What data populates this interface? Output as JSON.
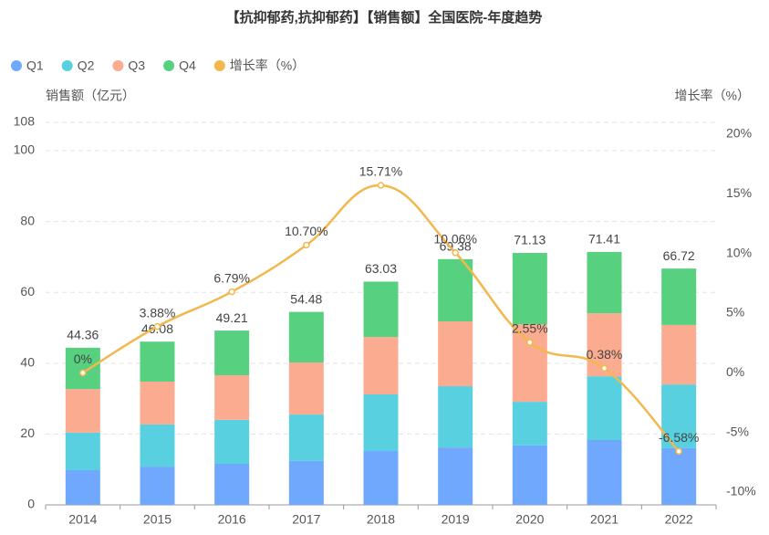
{
  "chart_data": {
    "type": "bar-line",
    "title": "【抗抑郁药,抗抑郁药】【销售额】全国医院-年度趋势",
    "y_label": "销售额（亿元）",
    "y2_label": "增长率（%）",
    "categories": [
      "2014",
      "2015",
      "2016",
      "2017",
      "2018",
      "2019",
      "2020",
      "2021",
      "2022"
    ],
    "series": [
      {
        "name": "Q1",
        "color": "#6fa8fc",
        "values": [
          9.8,
          10.8,
          11.6,
          12.4,
          15.2,
          16.2,
          16.8,
          18.3,
          16.0
        ]
      },
      {
        "name": "Q2",
        "color": "#58d0e0",
        "values": [
          10.6,
          11.9,
          12.4,
          13.1,
          16.0,
          17.3,
          12.3,
          18.0,
          18.0
        ]
      },
      {
        "name": "Q3",
        "color": "#fbab8f",
        "values": [
          12.3,
          12.1,
          12.6,
          14.7,
          16.2,
          18.3,
          21.9,
          17.8,
          16.8
        ]
      },
      {
        "name": "Q4",
        "color": "#57d07f",
        "values": [
          11.66,
          11.28,
          12.61,
          14.28,
          15.63,
          17.58,
          20.13,
          17.31,
          15.92
        ]
      },
      {
        "name": "增长率（%）",
        "color": "#f2b84e",
        "axis": "y2",
        "values": [
          0,
          3.88,
          6.79,
          10.7,
          15.71,
          10.06,
          2.55,
          0.38,
          -6.58
        ],
        "value_labels": [
          "0%",
          "3.88%",
          "6.79%",
          "10.70%",
          "15.71%",
          "10.06%",
          "2.55%",
          "0.38%",
          "-6.58%"
        ]
      }
    ],
    "total_labels": [
      "44.36",
      "46.08",
      "49.21",
      "54.48",
      "63.03",
      "69.38",
      "71.13",
      "71.41",
      "66.72"
    ],
    "ylim": [
      0,
      108
    ],
    "yticks": [
      0,
      20,
      40,
      60,
      80,
      100,
      108
    ],
    "y2lim": [
      -11.07,
      20.99
    ],
    "y2ticks": [
      {
        "value": -10,
        "label": "-10%"
      },
      {
        "value": -5,
        "label": "-5%"
      },
      {
        "value": 0,
        "label": "0%"
      },
      {
        "value": 5,
        "label": "5%"
      },
      {
        "value": 10,
        "label": "10%"
      },
      {
        "value": 15,
        "label": "15%"
      },
      {
        "value": 20,
        "label": "20%"
      }
    ],
    "grid": true,
    "legend": "top-left"
  }
}
